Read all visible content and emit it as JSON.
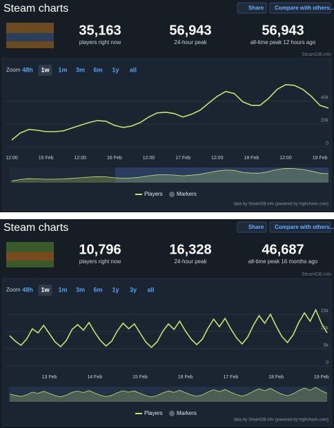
{
  "panels": [
    {
      "title": "Steam charts",
      "share": "Share",
      "compare": "Compare with others...",
      "stats": [
        {
          "value": "35,163",
          "label": "players right now"
        },
        {
          "value": "56,943",
          "label": "24-hour peak"
        },
        {
          "value": "56,943",
          "label": "all-time peak 12 hours ago"
        }
      ],
      "credit": "SteamDB.info",
      "zoom_label": "Zoom",
      "zoom": [
        "48h",
        "1w",
        "1m",
        "3m",
        "6m",
        "1y",
        "all"
      ],
      "zoom_selected": 1,
      "markers": "Markers",
      "footer": "data by SteamDB.info (powered by highcharts.com)"
    },
    {
      "title": "Steam charts",
      "share": "Share",
      "compare": "Compare with others...",
      "stats": [
        {
          "value": "10,796",
          "label": "players right now"
        },
        {
          "value": "16,328",
          "label": "24-hour peak"
        },
        {
          "value": "46,687",
          "label": "all-time peak 16 months ago"
        }
      ],
      "credit": "SteamDB.info",
      "zoom_label": "Zoom",
      "zoom": [
        "48h",
        "1w",
        "1m",
        "3m",
        "6m",
        "1y",
        "3y",
        "all"
      ],
      "zoom_selected": 1,
      "markers": "Markers",
      "footer": "data by SteamDB.info (powered by highcharts.com)"
    }
  ],
  "chart_data": [
    {
      "type": "line",
      "categories": [
        "12:00",
        null,
        null,
        null,
        "15 Feb",
        null,
        null,
        null,
        "12:00",
        null,
        null,
        null,
        "16 Feb",
        null,
        null,
        null,
        "12:00",
        null,
        null,
        null,
        "17 Feb",
        null,
        null,
        null,
        "12:00",
        null,
        null,
        null,
        "18 Feb",
        null,
        null,
        null,
        "12:00",
        null,
        null,
        null,
        "19 Feb",
        null
      ],
      "series": [
        {
          "name": "Players",
          "color": "#c8e46a",
          "values": [
            6000,
            12100,
            15200,
            14500,
            13300,
            13300,
            13900,
            16400,
            18800,
            21200,
            23000,
            22400,
            18800,
            17000,
            18200,
            21200,
            26100,
            29700,
            30300,
            29100,
            26100,
            28500,
            32100,
            38200,
            44200,
            48500,
            46700,
            39400,
            36400,
            36400,
            42400,
            50300,
            54500,
            53900,
            50300,
            44200,
            36400,
            33900
          ]
        }
      ],
      "ylim": [
        0,
        58000
      ],
      "yticks": [
        0,
        {
          "value": 20000,
          "label": "20k"
        },
        {
          "value": 40000,
          "label": "40k"
        }
      ],
      "grid": true
    },
    {
      "type": "line",
      "categories": [
        null,
        null,
        null,
        null,
        null,
        null,
        null,
        "13 Feb",
        null,
        null,
        null,
        null,
        null,
        null,
        null,
        "14 Feb",
        null,
        null,
        null,
        null,
        null,
        null,
        null,
        "15 Feb",
        null,
        null,
        null,
        null,
        null,
        null,
        null,
        "16 Feb",
        null,
        null,
        null,
        null,
        null,
        null,
        null,
        "17 Feb",
        null,
        null,
        null,
        null,
        null,
        null,
        null,
        "18 Feb",
        null,
        null,
        null,
        null,
        null,
        null,
        null,
        "19 Feb",
        null
      ],
      "series": [
        {
          "name": "Players",
          "color": "#c8e46a",
          "values": [
            8800,
            7200,
            6000,
            7800,
            10800,
            9600,
            11800,
            9400,
            7000,
            5600,
            7400,
            10600,
            12000,
            10400,
            12600,
            9800,
            7400,
            5800,
            7200,
            10200,
            12400,
            10800,
            12200,
            9600,
            7000,
            5400,
            7000,
            10000,
            12200,
            10600,
            13000,
            10200,
            7800,
            6200,
            7800,
            11000,
            13600,
            11400,
            13800,
            10800,
            8200,
            6400,
            8400,
            11800,
            14600,
            12400,
            15000,
            11600,
            8600,
            6800,
            9000,
            12600,
            15400,
            13000,
            16300,
            12400,
            9600
          ]
        }
      ],
      "ylim": [
        0,
        17000
      ],
      "yticks": [
        0,
        {
          "value": 5000,
          "label": "5k"
        },
        {
          "value": 10000,
          "label": "10k"
        },
        {
          "value": 15000,
          "label": "15k"
        }
      ],
      "grid": true
    }
  ]
}
